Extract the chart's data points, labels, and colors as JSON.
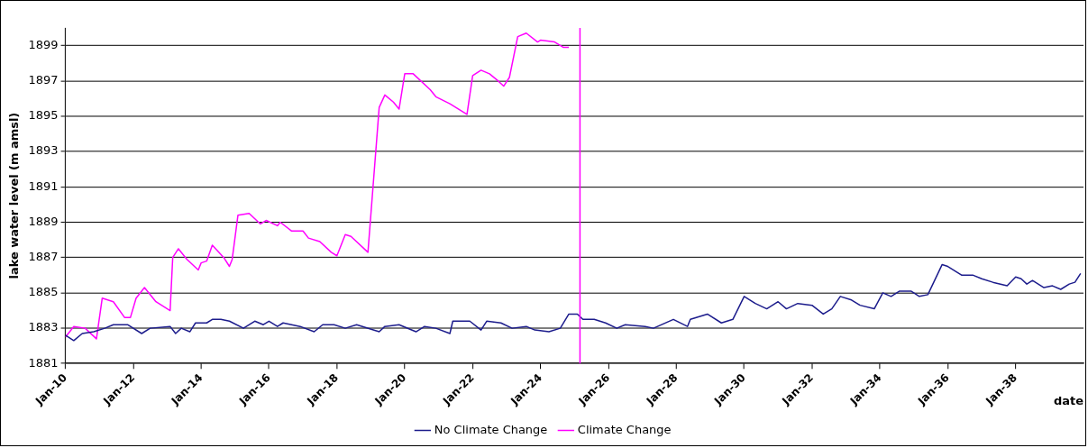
{
  "chart_data": {
    "type": "line",
    "xlabel": "date",
    "ylabel": "lake water level (m amsl)",
    "xlim": [
      "2010-01",
      "2040-01"
    ],
    "ylim": [
      1881,
      1900
    ],
    "xticks": [
      {
        "value": "2010-01",
        "label": "Jan-10"
      },
      {
        "value": "2012-01",
        "label": "Jan-12"
      },
      {
        "value": "2014-01",
        "label": "Jan-14"
      },
      {
        "value": "2016-01",
        "label": "Jan-16"
      },
      {
        "value": "2018-01",
        "label": "Jan-18"
      },
      {
        "value": "2020-01",
        "label": "Jan-20"
      },
      {
        "value": "2022-01",
        "label": "Jan-22"
      },
      {
        "value": "2024-01",
        "label": "Jan-24"
      },
      {
        "value": "2026-01",
        "label": "Jan-26"
      },
      {
        "value": "2028-01",
        "label": "Jan-28"
      },
      {
        "value": "2030-01",
        "label": "Jan-30"
      },
      {
        "value": "2032-01",
        "label": "Jan-32"
      },
      {
        "value": "2034-01",
        "label": "Jan-34"
      },
      {
        "value": "2036-01",
        "label": "Jan-36"
      },
      {
        "value": "2038-01",
        "label": "Jan-38"
      }
    ],
    "yticks": [
      1881,
      1883,
      1885,
      1887,
      1889,
      1891,
      1893,
      1895,
      1897,
      1899
    ],
    "grid": "y",
    "legend": "bottom",
    "marker": "none",
    "line_style": "solid",
    "series": [
      {
        "name": "No Climate Change",
        "color": "#1c1c8c",
        "x": [
          "2010-01",
          "2010-04",
          "2010-07",
          "2010-11",
          "2011-03",
          "2011-06",
          "2011-11",
          "2012-04",
          "2012-07",
          "2013-02",
          "2013-04",
          "2013-06",
          "2013-09",
          "2013-11",
          "2014-03",
          "2014-05",
          "2014-08",
          "2014-11",
          "2015-04",
          "2015-08",
          "2015-11",
          "2016-01",
          "2016-04",
          "2016-06",
          "2016-12",
          "2017-05",
          "2017-08",
          "2017-12",
          "2018-04",
          "2018-08",
          "2019-04",
          "2019-06",
          "2019-11",
          "2020-05",
          "2020-08",
          "2020-12",
          "2021-05",
          "2021-06",
          "2021-12",
          "2022-04",
          "2022-06",
          "2022-11",
          "2023-03",
          "2023-08",
          "2023-11",
          "2024-04",
          "2024-08",
          "2024-11",
          "2025-02",
          "2025-04",
          "2025-08",
          "2025-12",
          "2026-04",
          "2026-07",
          "2027-02",
          "2027-05",
          "2027-12",
          "2028-05",
          "2028-06",
          "2028-12",
          "2029-05",
          "2029-09",
          "2030-01",
          "2030-05",
          "2030-09",
          "2031-01",
          "2031-04",
          "2031-08",
          "2032-01",
          "2032-05",
          "2032-08",
          "2032-11",
          "2033-03",
          "2033-06",
          "2033-11",
          "2034-02",
          "2034-05",
          "2034-08",
          "2034-12",
          "2035-03",
          "2035-06",
          "2035-11",
          "2036-01",
          "2036-06",
          "2036-10",
          "2037-01",
          "2037-05",
          "2037-10",
          "2038-01",
          "2038-03",
          "2038-05",
          "2038-07",
          "2038-11",
          "2039-02",
          "2039-05",
          "2039-08",
          "2039-10",
          "2039-12"
        ],
        "values": [
          1882.6,
          1882.3,
          1882.7,
          1882.8,
          1883.0,
          1883.2,
          1883.2,
          1882.7,
          1883.0,
          1883.1,
          1882.7,
          1883.0,
          1882.8,
          1883.3,
          1883.3,
          1883.5,
          1883.5,
          1883.4,
          1883.0,
          1883.4,
          1883.2,
          1883.4,
          1883.1,
          1883.3,
          1883.1,
          1882.8,
          1883.2,
          1883.2,
          1883.0,
          1883.2,
          1882.8,
          1883.1,
          1883.2,
          1882.8,
          1883.1,
          1883.0,
          1882.7,
          1883.4,
          1883.4,
          1882.9,
          1883.4,
          1883.3,
          1883.0,
          1883.1,
          1882.9,
          1882.8,
          1883.0,
          1883.8,
          1883.8,
          1883.5,
          1883.5,
          1883.3,
          1883.0,
          1883.2,
          1883.1,
          1883.0,
          1883.5,
          1883.1,
          1883.5,
          1883.8,
          1883.3,
          1883.5,
          1884.8,
          1884.4,
          1884.1,
          1884.5,
          1884.1,
          1884.4,
          1884.3,
          1883.8,
          1884.1,
          1884.8,
          1884.6,
          1884.3,
          1884.1,
          1885.0,
          1884.8,
          1885.1,
          1885.1,
          1884.8,
          1884.9,
          1886.6,
          1886.5,
          1886.0,
          1886.0,
          1885.8,
          1885.6,
          1885.4,
          1885.9,
          1885.8,
          1885.5,
          1885.7,
          1885.3,
          1885.4,
          1885.2,
          1885.5,
          1885.6,
          1886.1
        ]
      },
      {
        "name": "Climate Change",
        "color": "#ff00ff",
        "x": [
          "2010-01",
          "2010-04",
          "2010-08",
          "2010-12",
          "2011-02",
          "2011-06",
          "2011-10",
          "2011-12",
          "2012-02",
          "2012-05",
          "2012-09",
          "2013-02",
          "2013-03",
          "2013-05",
          "2013-08",
          "2013-12",
          "2014-01",
          "2014-03",
          "2014-05",
          "2014-09",
          "2014-11",
          "2014-12",
          "2015-02",
          "2015-06",
          "2015-10",
          "2015-12",
          "2016-04",
          "2016-05",
          "2016-09",
          "2017-01",
          "2017-03",
          "2017-07",
          "2017-11",
          "2018-01",
          "2018-04",
          "2018-06",
          "2018-12",
          "2019-04",
          "2019-06",
          "2019-09",
          "2019-11",
          "2020-01",
          "2020-04",
          "2020-10",
          "2020-12",
          "2021-05",
          "2021-11",
          "2022-01",
          "2022-04",
          "2022-07",
          "2022-10",
          "2022-12",
          "2023-02",
          "2023-05",
          "2023-08",
          "2023-12",
          "2024-01",
          "2024-06",
          "2024-09",
          "2024-11"
        ],
        "values": [
          1882.5,
          1883.1,
          1883.0,
          1882.4,
          1884.7,
          1884.5,
          1883.6,
          1883.6,
          1884.7,
          1885.3,
          1884.5,
          1884.0,
          1887.0,
          1887.5,
          1886.9,
          1886.3,
          1886.7,
          1886.8,
          1887.7,
          1887.0,
          1886.5,
          1886.9,
          1889.4,
          1889.5,
          1888.9,
          1889.1,
          1888.8,
          1889.0,
          1888.5,
          1888.5,
          1888.1,
          1887.9,
          1887.3,
          1887.1,
          1888.3,
          1888.2,
          1887.3,
          1895.5,
          1896.2,
          1895.8,
          1895.4,
          1897.4,
          1897.4,
          1896.5,
          1896.1,
          1895.7,
          1895.1,
          1897.3,
          1897.6,
          1897.4,
          1897.0,
          1896.7,
          1897.2,
          1899.5,
          1899.7,
          1899.2,
          1899.3,
          1899.2,
          1898.9,
          1898.9
        ]
      }
    ],
    "ref_lines": [
      {
        "axis": "x",
        "value": "2025-03",
        "color": "#ff00ff",
        "line_style": "solid"
      }
    ]
  }
}
